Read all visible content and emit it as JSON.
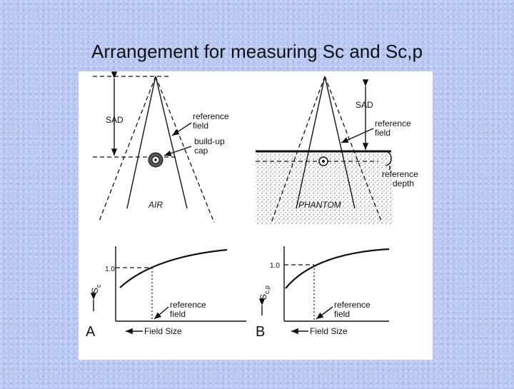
{
  "header": {
    "title": "Arrangement for measuring Sc and Sc,p"
  },
  "panels": [
    {
      "letter": "A",
      "setup": {
        "sad": "SAD",
        "reference_field": [
          "reference",
          "field"
        ],
        "build_up_cap": [
          "build-up",
          "cap"
        ],
        "medium": "AIR"
      },
      "graph": {
        "y_tick": "1.0",
        "y_symbol": "S",
        "y_subscript": "c",
        "reference_field": [
          "reference",
          "field"
        ],
        "x_label": "Field Size"
      }
    },
    {
      "letter": "B",
      "setup": {
        "sad": "SAD",
        "reference_field": [
          "reference",
          "field"
        ],
        "reference_depth": [
          "reference",
          "depth"
        ],
        "medium": "PHANTOM"
      },
      "graph": {
        "y_tick": "1.0",
        "y_symbol": "S",
        "y_subscript": "c,p",
        "reference_field": [
          "reference",
          "field"
        ],
        "x_label": "Field Size"
      }
    }
  ]
}
